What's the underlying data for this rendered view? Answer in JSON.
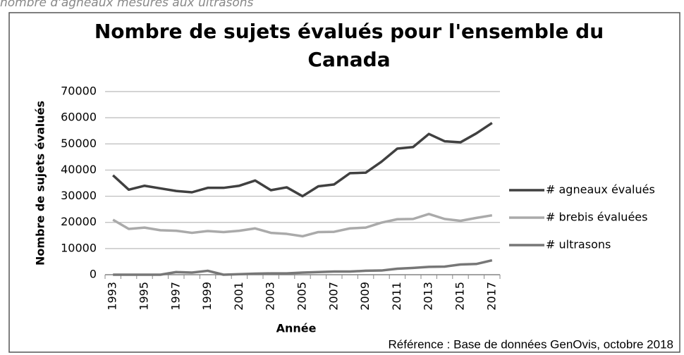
{
  "top_text": "nombre d'agneaux mesurés aux ultrasons",
  "reference": "Référence : Base de données GenOvis, octobre 2018",
  "chart_data": {
    "type": "line",
    "title": [
      "Nombre de sujets évalués pour l'ensemble du",
      "Canada"
    ],
    "x_label": "Année",
    "y_label": "Nombre de sujets évalués",
    "categories": [
      "1993",
      null,
      "1995",
      null,
      "1997",
      null,
      "1999",
      null,
      "2001",
      null,
      "2003",
      null,
      "2005",
      null,
      "2007",
      null,
      "2009",
      null,
      "2011",
      null,
      "2013",
      null,
      "2015",
      null,
      "2017"
    ],
    "series": [
      {
        "name": "# agneaux évalués",
        "color": "#404040",
        "values": [
          38000,
          32500,
          34000,
          33000,
          32000,
          31500,
          33200,
          33200,
          34000,
          36000,
          32300,
          33400,
          30000,
          33800,
          34500,
          38800,
          39000,
          43200,
          48200,
          48800,
          53800,
          51000,
          50600,
          54000,
          58000
        ]
      },
      {
        "name": "# brebis évaluées",
        "color": "#aaaaaa",
        "values": [
          21000,
          17500,
          18000,
          17000,
          16800,
          16000,
          16700,
          16300,
          16800,
          17700,
          16000,
          15600,
          14700,
          16300,
          16400,
          17700,
          18000,
          19900,
          21200,
          21300,
          23200,
          21300,
          20600,
          21700,
          22700
        ]
      },
      {
        "name": "# ultrasons",
        "color": "#777777",
        "values": [
          0,
          0,
          0,
          0,
          1000,
          800,
          1500,
          0,
          200,
          400,
          500,
          500,
          800,
          1000,
          1200,
          1200,
          1500,
          1600,
          2300,
          2600,
          3000,
          3100,
          3900,
          4100,
          5500
        ]
      }
    ],
    "ylim": [
      0,
      70000
    ],
    "yticks": [
      0,
      10000,
      20000,
      30000,
      40000,
      50000,
      60000,
      70000
    ],
    "grid": true,
    "legend": "right"
  }
}
